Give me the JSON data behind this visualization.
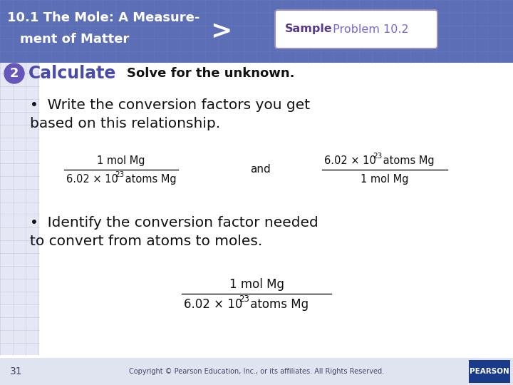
{
  "bg_top_color": "#5c6eb5",
  "bg_body_color": "#ffffff",
  "bg_left_strip": "#d6daf0",
  "header_text_color": "#ffffff",
  "header_title_line1": "10.1 The Mole: A Measure-",
  "header_title_line2": "    ment of Matter",
  "arrow_char": ">",
  "sample_bold": "Sample",
  "sample_rest": " Problem 10.2",
  "sample_bold_color": "#5b3a8a",
  "sample_rest_color": "#7b68cc",
  "sample_box_bg": "#ffffff",
  "sample_box_border": "#9a8fc0",
  "step_circle_color": "#6655bb",
  "step_number": "2",
  "step_label": "Calculate",
  "step_label_color": "#4a4aaa",
  "step_desc": "Solve for the unknown.",
  "step_desc_color": "#111111",
  "bullet_color": "#111111",
  "bullet1_line1": "•  Write the conversion factors you get",
  "bullet1_line2": "    based on this relationship.",
  "fraction1_num": "1 mol Mg",
  "fraction1_den_a": "6.02 × 10",
  "fraction1_den_sup": "23",
  "fraction1_den_b": " atoms Mg",
  "and_text": "and",
  "fraction2_num_a": "6.02 × 10",
  "fraction2_num_sup": "23",
  "fraction2_num_b": " atoms Mg",
  "fraction2_den": "1 mol Mg",
  "bullet2_line1": "•  Identify the conversion factor needed",
  "bullet2_line2": "    to convert from atoms to moles.",
  "fraction3_num": "1 mol Mg",
  "fraction3_den_a": "6.02 × 10",
  "fraction3_den_sup": "23",
  "fraction3_den_b": " atoms Mg",
  "footer_page": "31",
  "footer_copy": "Copyright © Pearson Education, Inc., or its affiliates. All Rights Reserved.",
  "footer_bg": "#e0e4f0",
  "footer_text_color": "#444466",
  "pearson_bg": "#1a3a8a",
  "pearson_text": "PEARSON"
}
